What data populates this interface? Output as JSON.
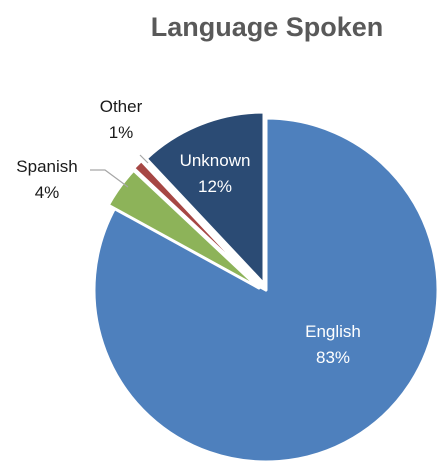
{
  "chart_data": {
    "type": "pie",
    "title": "Language Spoken",
    "slices": [
      {
        "name": "English",
        "value": 83,
        "label": "83%",
        "color": "#4E80BD"
      },
      {
        "name": "Spanish",
        "value": 4,
        "label": "4%",
        "color": "#8DB359"
      },
      {
        "name": "Other",
        "value": 1,
        "label": "1%",
        "color": "#A64744"
      },
      {
        "name": "Unknown",
        "value": 12,
        "label": "12%",
        "color": "#2B4B74"
      }
    ],
    "start": "12 o'clock",
    "direction": "clockwise",
    "exploded_slices": [
      "Spanish",
      "Other",
      "Unknown"
    ],
    "leader_lines": [
      "Spanish",
      "Other"
    ]
  }
}
